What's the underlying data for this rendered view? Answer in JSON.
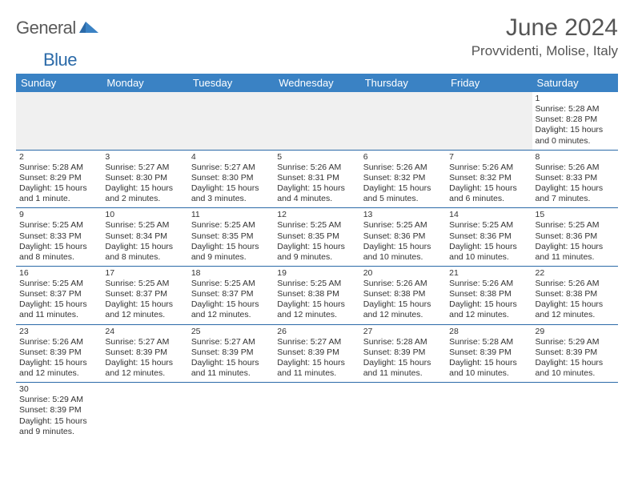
{
  "logo": {
    "part1": "General",
    "part2": "Blue"
  },
  "title": "June 2024",
  "location": "Provvidenti, Molise, Italy",
  "colors": {
    "header_bg": "#3a82c4",
    "header_text": "#ffffff",
    "rule": "#2b6aa8",
    "daynum_bg": "#e8e8e8",
    "logo_gray": "#5a5a5a",
    "logo_blue": "#2b6aa8",
    "body_text": "#333333",
    "title_text": "#555555",
    "page_bg": "#ffffff"
  },
  "weekdays": [
    "Sunday",
    "Monday",
    "Tuesday",
    "Wednesday",
    "Thursday",
    "Friday",
    "Saturday"
  ],
  "first_weekday_index": 6,
  "days": [
    {
      "n": 1,
      "sunrise": "5:28 AM",
      "sunset": "8:28 PM",
      "daylight": "15 hours and 0 minutes."
    },
    {
      "n": 2,
      "sunrise": "5:28 AM",
      "sunset": "8:29 PM",
      "daylight": "15 hours and 1 minute."
    },
    {
      "n": 3,
      "sunrise": "5:27 AM",
      "sunset": "8:30 PM",
      "daylight": "15 hours and 2 minutes."
    },
    {
      "n": 4,
      "sunrise": "5:27 AM",
      "sunset": "8:30 PM",
      "daylight": "15 hours and 3 minutes."
    },
    {
      "n": 5,
      "sunrise": "5:26 AM",
      "sunset": "8:31 PM",
      "daylight": "15 hours and 4 minutes."
    },
    {
      "n": 6,
      "sunrise": "5:26 AM",
      "sunset": "8:32 PM",
      "daylight": "15 hours and 5 minutes."
    },
    {
      "n": 7,
      "sunrise": "5:26 AM",
      "sunset": "8:32 PM",
      "daylight": "15 hours and 6 minutes."
    },
    {
      "n": 8,
      "sunrise": "5:26 AM",
      "sunset": "8:33 PM",
      "daylight": "15 hours and 7 minutes."
    },
    {
      "n": 9,
      "sunrise": "5:25 AM",
      "sunset": "8:33 PM",
      "daylight": "15 hours and 8 minutes."
    },
    {
      "n": 10,
      "sunrise": "5:25 AM",
      "sunset": "8:34 PM",
      "daylight": "15 hours and 8 minutes."
    },
    {
      "n": 11,
      "sunrise": "5:25 AM",
      "sunset": "8:35 PM",
      "daylight": "15 hours and 9 minutes."
    },
    {
      "n": 12,
      "sunrise": "5:25 AM",
      "sunset": "8:35 PM",
      "daylight": "15 hours and 9 minutes."
    },
    {
      "n": 13,
      "sunrise": "5:25 AM",
      "sunset": "8:36 PM",
      "daylight": "15 hours and 10 minutes."
    },
    {
      "n": 14,
      "sunrise": "5:25 AM",
      "sunset": "8:36 PM",
      "daylight": "15 hours and 10 minutes."
    },
    {
      "n": 15,
      "sunrise": "5:25 AM",
      "sunset": "8:36 PM",
      "daylight": "15 hours and 11 minutes."
    },
    {
      "n": 16,
      "sunrise": "5:25 AM",
      "sunset": "8:37 PM",
      "daylight": "15 hours and 11 minutes."
    },
    {
      "n": 17,
      "sunrise": "5:25 AM",
      "sunset": "8:37 PM",
      "daylight": "15 hours and 12 minutes."
    },
    {
      "n": 18,
      "sunrise": "5:25 AM",
      "sunset": "8:37 PM",
      "daylight": "15 hours and 12 minutes."
    },
    {
      "n": 19,
      "sunrise": "5:25 AM",
      "sunset": "8:38 PM",
      "daylight": "15 hours and 12 minutes."
    },
    {
      "n": 20,
      "sunrise": "5:26 AM",
      "sunset": "8:38 PM",
      "daylight": "15 hours and 12 minutes."
    },
    {
      "n": 21,
      "sunrise": "5:26 AM",
      "sunset": "8:38 PM",
      "daylight": "15 hours and 12 minutes."
    },
    {
      "n": 22,
      "sunrise": "5:26 AM",
      "sunset": "8:38 PM",
      "daylight": "15 hours and 12 minutes."
    },
    {
      "n": 23,
      "sunrise": "5:26 AM",
      "sunset": "8:39 PM",
      "daylight": "15 hours and 12 minutes."
    },
    {
      "n": 24,
      "sunrise": "5:27 AM",
      "sunset": "8:39 PM",
      "daylight": "15 hours and 12 minutes."
    },
    {
      "n": 25,
      "sunrise": "5:27 AM",
      "sunset": "8:39 PM",
      "daylight": "15 hours and 11 minutes."
    },
    {
      "n": 26,
      "sunrise": "5:27 AM",
      "sunset": "8:39 PM",
      "daylight": "15 hours and 11 minutes."
    },
    {
      "n": 27,
      "sunrise": "5:28 AM",
      "sunset": "8:39 PM",
      "daylight": "15 hours and 11 minutes."
    },
    {
      "n": 28,
      "sunrise": "5:28 AM",
      "sunset": "8:39 PM",
      "daylight": "15 hours and 10 minutes."
    },
    {
      "n": 29,
      "sunrise": "5:29 AM",
      "sunset": "8:39 PM",
      "daylight": "15 hours and 10 minutes."
    },
    {
      "n": 30,
      "sunrise": "5:29 AM",
      "sunset": "8:39 PM",
      "daylight": "15 hours and 9 minutes."
    }
  ],
  "labels": {
    "sunrise": "Sunrise:",
    "sunset": "Sunset:",
    "daylight": "Daylight:"
  }
}
